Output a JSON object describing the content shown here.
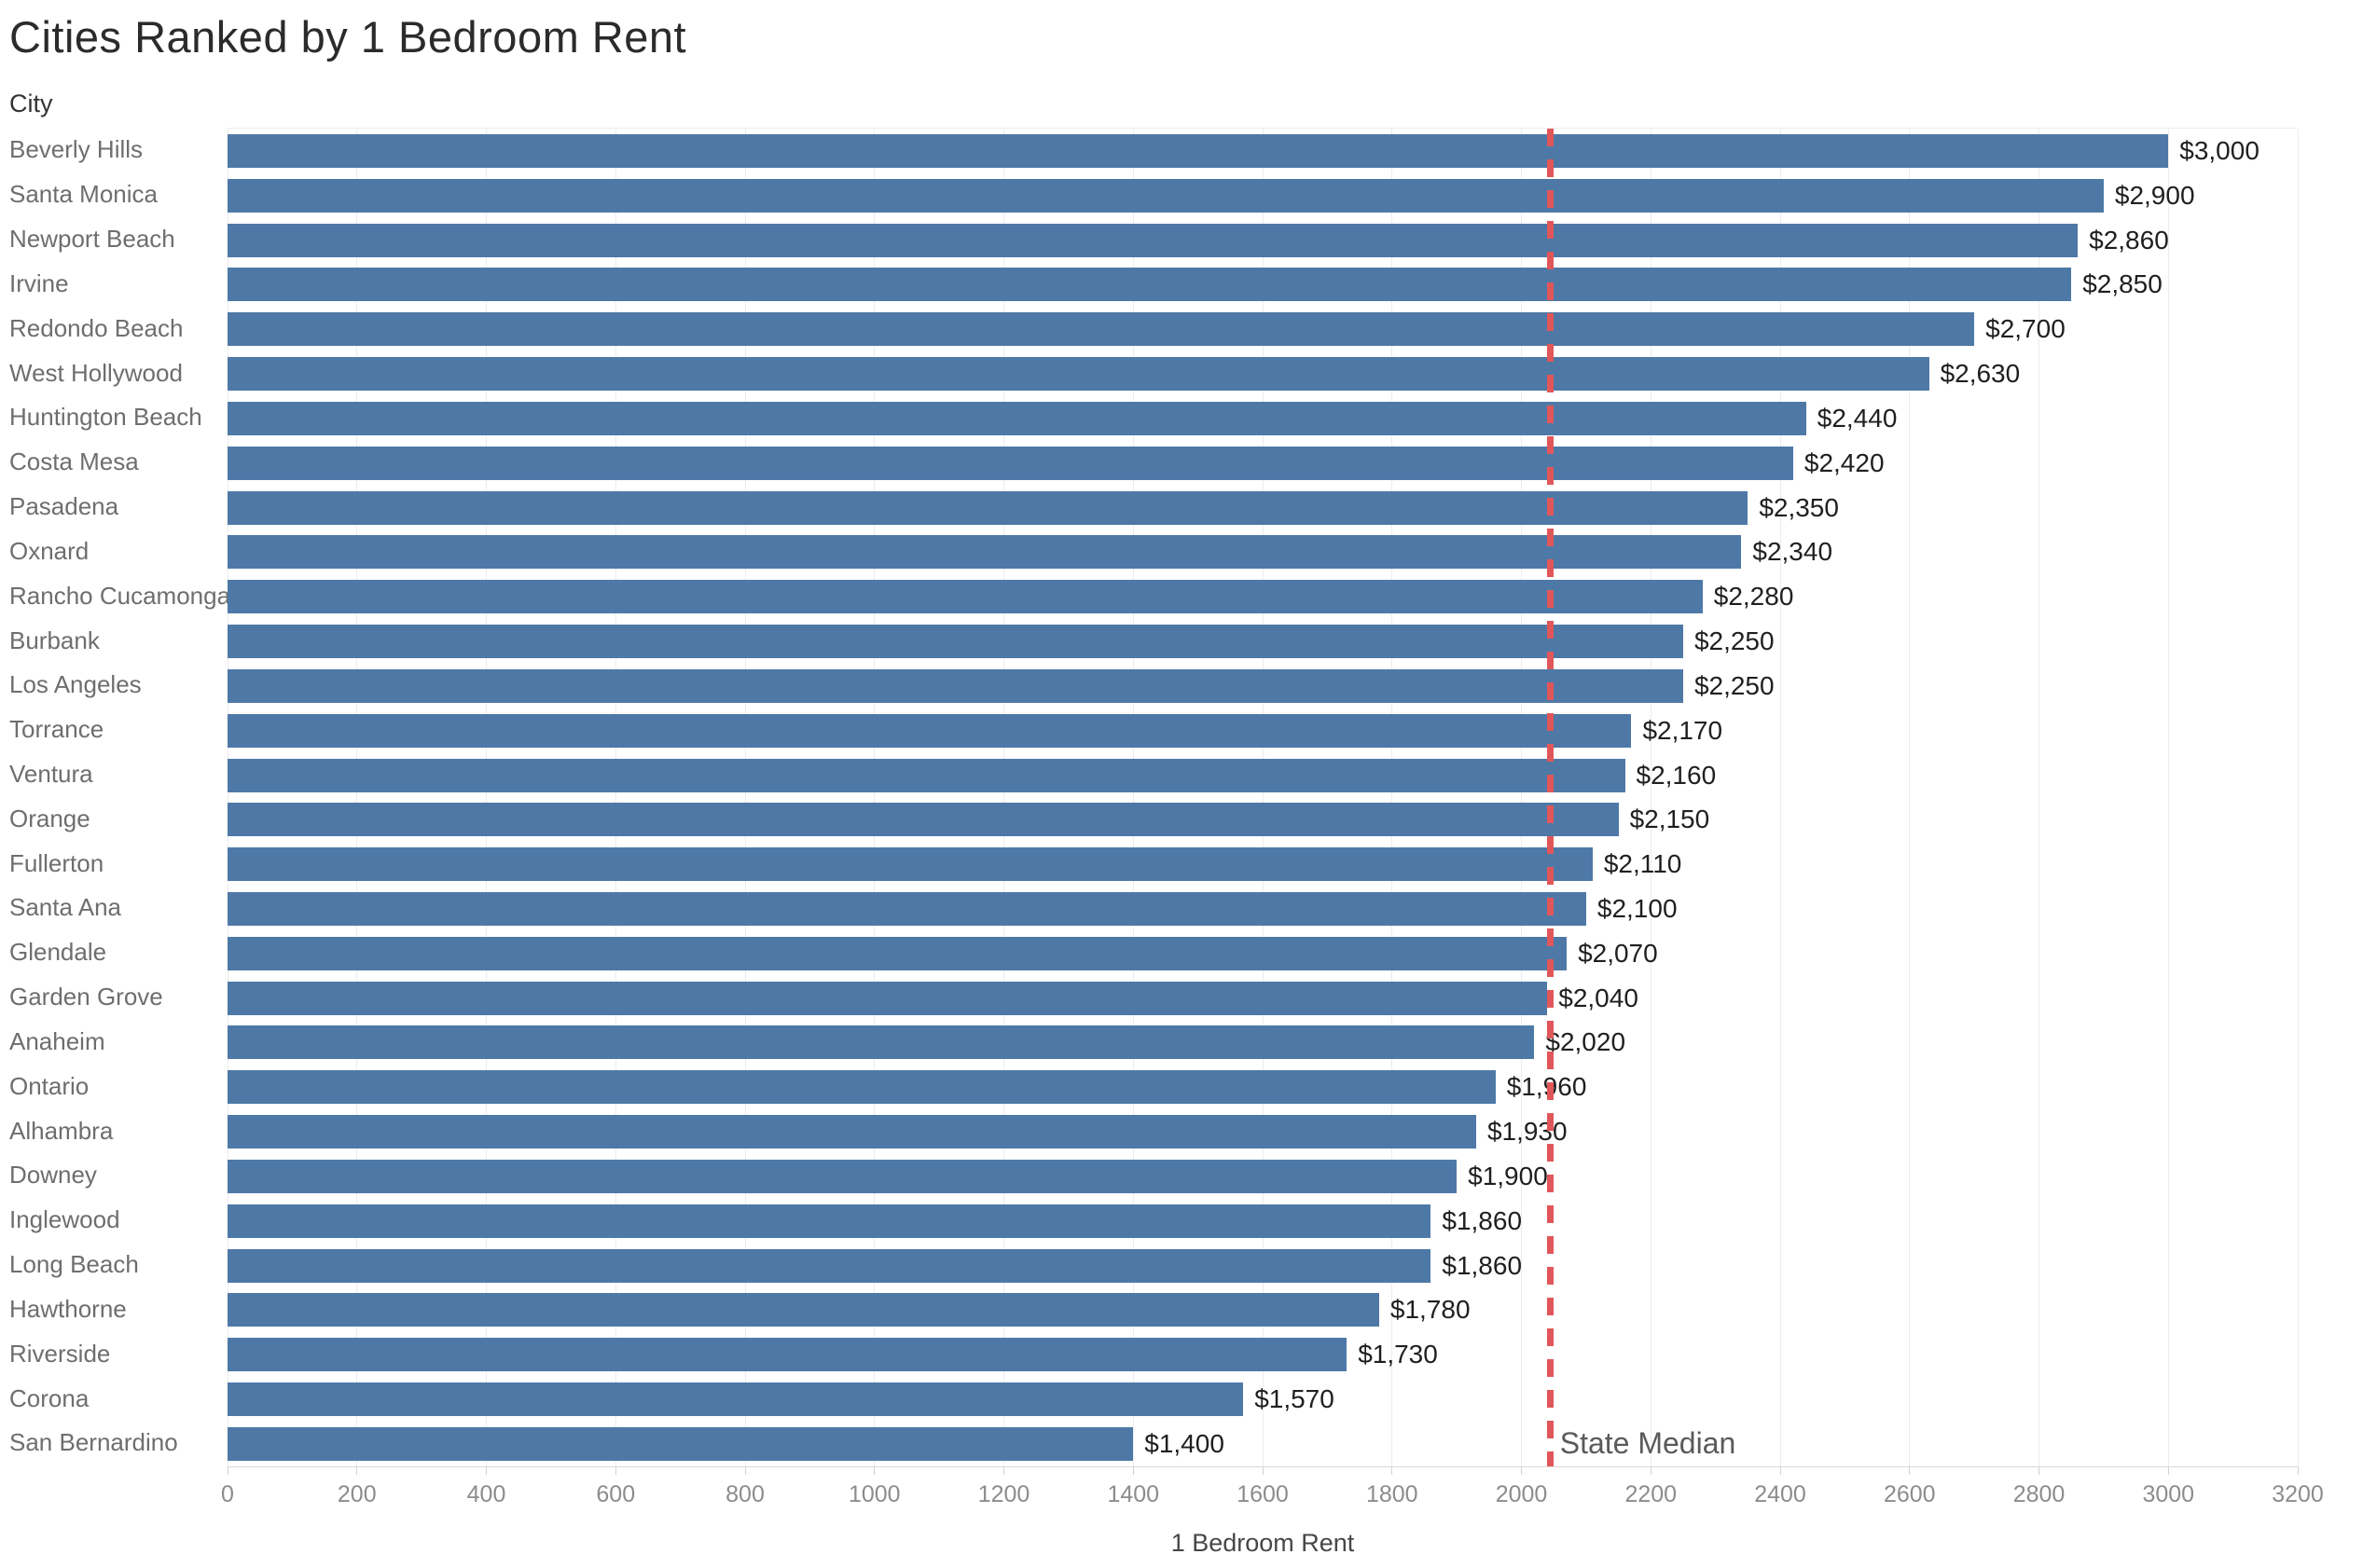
{
  "chart_data": {
    "type": "bar",
    "orientation": "horizontal",
    "title": "Cities Ranked by 1 Bedroom Rent",
    "category_header": "City",
    "xlabel": "1 Bedroom Rent",
    "xlim": [
      0,
      3200
    ],
    "x_tick_interval": 200,
    "x_tick_labels": [
      "0",
      "200",
      "400",
      "600",
      "800",
      "1000",
      "1200",
      "1400",
      "1600",
      "1800",
      "2000",
      "2200",
      "2400",
      "2600",
      "2800",
      "3000",
      "3200"
    ],
    "grid": "vertical-light",
    "legend": "none",
    "bar_color": "#4e79a7",
    "categories": [
      "Beverly Hills",
      "Santa Monica",
      "Newport Beach",
      "Irvine",
      "Redondo Beach",
      "West Hollywood",
      "Huntington Beach",
      "Costa Mesa",
      "Pasadena",
      "Oxnard",
      "Rancho Cucamonga",
      "Burbank",
      "Los Angeles",
      "Torrance",
      "Ventura",
      "Orange",
      "Fullerton",
      "Santa Ana",
      "Glendale",
      "Garden Grove",
      "Anaheim",
      "Ontario",
      "Alhambra",
      "Downey",
      "Inglewood",
      "Long Beach",
      "Hawthorne",
      "Riverside",
      "Corona",
      "San Bernardino"
    ],
    "values": [
      3000,
      2900,
      2860,
      2850,
      2700,
      2630,
      2440,
      2420,
      2350,
      2340,
      2280,
      2250,
      2250,
      2170,
      2160,
      2150,
      2110,
      2100,
      2070,
      2040,
      2020,
      1960,
      1930,
      1900,
      1860,
      1860,
      1780,
      1730,
      1570,
      1400
    ],
    "value_labels": [
      "$3,000",
      "$2,900",
      "$2,860",
      "$2,850",
      "$2,700",
      "$2,630",
      "$2,440",
      "$2,420",
      "$2,350",
      "$2,340",
      "$2,280",
      "$2,250",
      "$2,250",
      "$2,170",
      "$2,160",
      "$2,150",
      "$2,110",
      "$2,100",
      "$2,070",
      "$2,040",
      "$2,020",
      "$1,960",
      "$1,930",
      "$1,900",
      "$1,860",
      "$1,860",
      "$1,780",
      "$1,730",
      "$1,570",
      "$1,400"
    ],
    "reference_line": {
      "label": "State Median",
      "value": 2045,
      "color": "#e15759",
      "style": "dashed"
    }
  }
}
